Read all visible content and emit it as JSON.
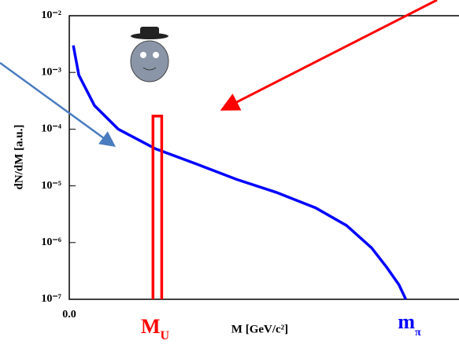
{
  "chart_data": {
    "type": "line",
    "y_label": "dN/dM  [a.u.]",
    "x_label": "M [GeV/c²]",
    "annotations": [
      {
        "text": "M",
        "sub": "U",
        "color": "#ff0000"
      },
      {
        "text": "m",
        "sub": "π",
        "color": "#0000ff"
      }
    ],
    "log_y": true,
    "xlim": [
      0,
      0.156
    ],
    "ylim": [
      1e-07,
      0.01
    ],
    "xticks": [
      {
        "value": 0,
        "label": "0.0"
      }
    ],
    "yticks": [
      {
        "value": 0.01,
        "label": "10⁻²"
      },
      {
        "value": 0.001,
        "label": "10⁻³"
      },
      {
        "value": 0.0001,
        "label": "10⁻⁴"
      },
      {
        "value": 1e-05,
        "label": "10⁻⁵"
      },
      {
        "value": 1e-06,
        "label": "10⁻⁶"
      },
      {
        "value": 1e-07,
        "label": "10⁻⁷"
      }
    ],
    "series": [
      {
        "color": "#0000ff",
        "x": [
          0.0016,
          0.0038,
          0.0101,
          0.0196,
          0.0345,
          0.0512,
          0.067,
          0.0828,
          0.0986,
          0.111,
          0.121,
          0.127,
          0.132,
          0.1347
        ],
        "values": [
          0.003,
          0.0009,
          0.00026,
          0.0001,
          4.5e-05,
          2.4e-05,
          1.3e-05,
          7.7e-06,
          4.1e-06,
          2e-06,
          8.1e-07,
          3.7e-07,
          1.8e-07,
          1e-07
        ]
      },
      {
        "color": "#ff0000",
        "x": [
          0.0335,
          0.0335,
          0.037,
          0.037
        ],
        "values": [
          1e-07,
          0.00017,
          0.00017,
          1e-07
        ]
      }
    ]
  }
}
